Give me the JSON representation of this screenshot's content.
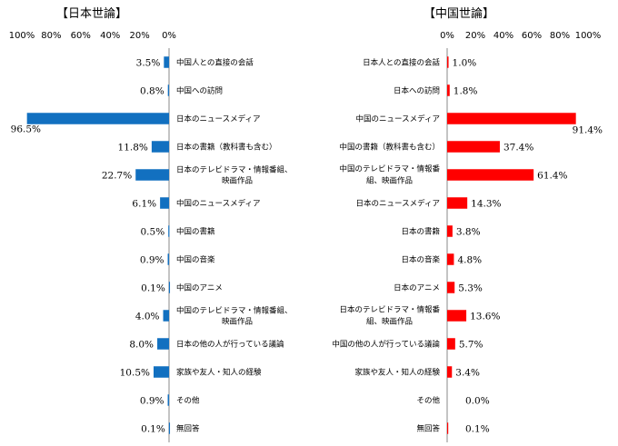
{
  "chart_data": [
    {
      "type": "bar",
      "orientation": "horizontal",
      "title": "【日本世論】",
      "x_direction": "reversed",
      "xlim": [
        0,
        100
      ],
      "tick_labels": [
        "100%",
        "80%",
        "60%",
        "40%",
        "20%",
        "0%"
      ],
      "color": "#1270C0",
      "categories": [
        "中国人との直接の会話",
        "中国への訪問",
        "日本のニュースメディア",
        "日本の書籍（教科書も含む）",
        "日本のテレビドラマ・情報番組、映画作品",
        "中国のニュースメディア",
        "中国の書籍",
        "中国の音楽",
        "中国のアニメ",
        "中国のテレビドラマ・情報番組、映画作品",
        "日本の他の人が行っている議論",
        "家族や友人・知人の経験",
        "その他",
        "無回答"
      ],
      "values": [
        3.5,
        0.8,
        96.5,
        11.8,
        22.7,
        6.1,
        0.5,
        0.9,
        0.1,
        4.0,
        8.0,
        10.5,
        0.9,
        0.1
      ],
      "value_labels": [
        "3.5%",
        "0.8%",
        "96.5%",
        "11.8%",
        "22.7%",
        "6.1%",
        "0.5%",
        "0.9%",
        "0.1%",
        "4.0%",
        "8.0%",
        "10.5%",
        "0.9%",
        "0.1%"
      ]
    },
    {
      "type": "bar",
      "orientation": "horizontal",
      "title": "【中国世論】",
      "x_direction": "normal",
      "xlim": [
        0,
        100
      ],
      "tick_labels": [
        "0%",
        "20%",
        "40%",
        "60%",
        "80%",
        "100%"
      ],
      "color": "#FF0000",
      "categories": [
        "日本人との直接の会話",
        "日本への訪問",
        "中国のニュースメディア",
        "中国の書籍（教科書も含む）",
        "中国のテレビドラマ・情報番組、映画作品",
        "日本のニュースメディア",
        "日本の書籍",
        "日本の音楽",
        "日本のアニメ",
        "日本のテレビドラマ・情報番組、映画作品",
        "中国の他の人が行っている議論",
        "家族や友人・知人の経験",
        "その他",
        "無回答"
      ],
      "values": [
        1.0,
        1.8,
        91.4,
        37.4,
        61.4,
        14.3,
        3.8,
        4.8,
        5.3,
        13.6,
        5.7,
        3.4,
        0.0,
        0.1
      ],
      "value_labels": [
        "1.0%",
        "1.8%",
        "91.4%",
        "37.4%",
        "61.4%",
        "14.3%",
        "3.8%",
        "4.8%",
        "5.3%",
        "13.6%",
        "5.7%",
        "3.4%",
        "0.0%",
        "0.1%"
      ]
    }
  ]
}
